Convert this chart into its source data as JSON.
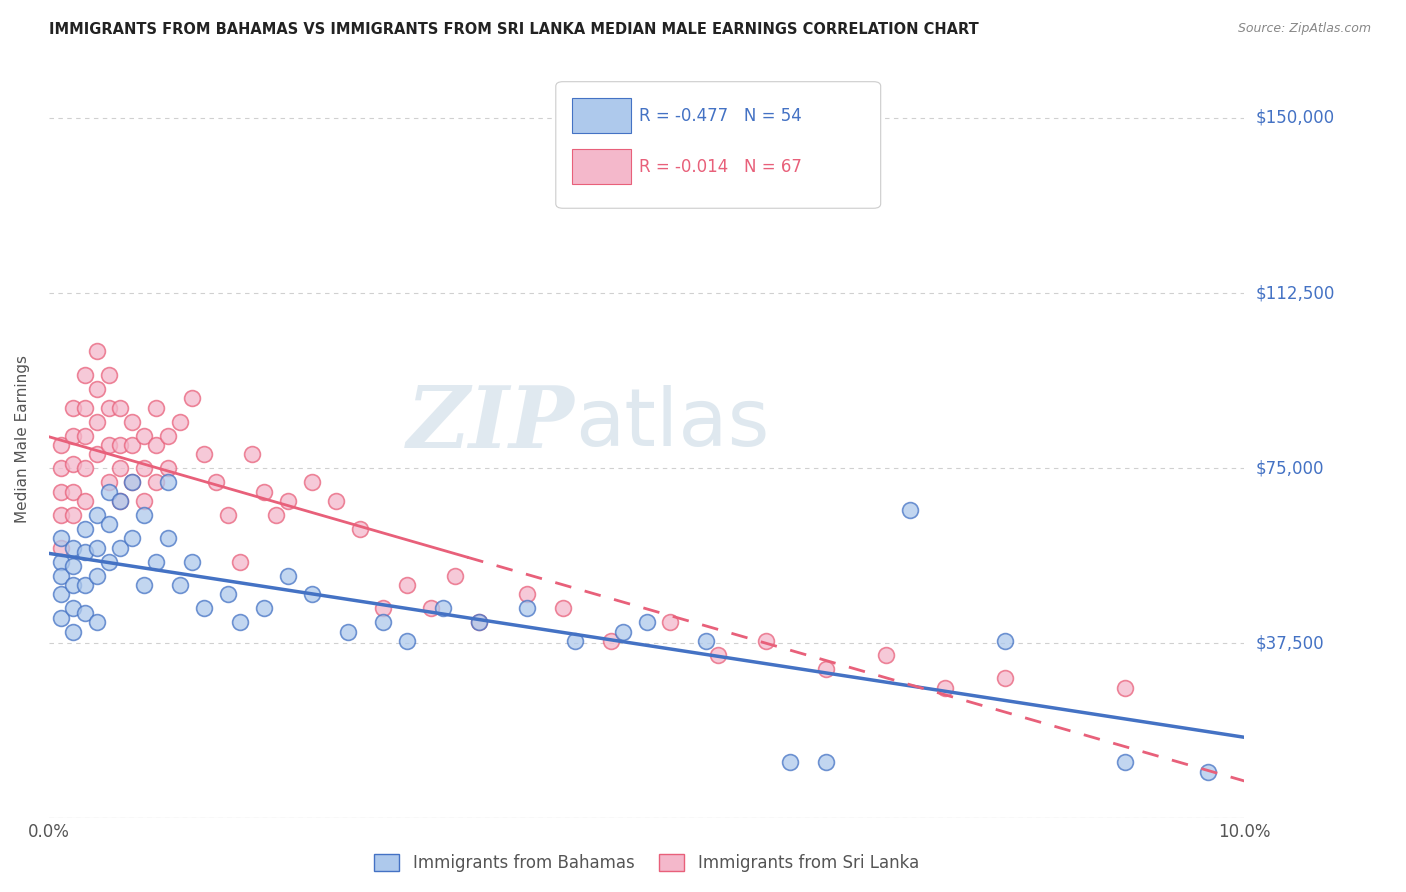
{
  "title": "IMMIGRANTS FROM BAHAMAS VS IMMIGRANTS FROM SRI LANKA MEDIAN MALE EARNINGS CORRELATION CHART",
  "source": "Source: ZipAtlas.com",
  "ylabel": "Median Male Earnings",
  "xlim": [
    0.0,
    0.1
  ],
  "ylim": [
    0,
    162500
  ],
  "yticks": [
    0,
    37500,
    75000,
    112500,
    150000
  ],
  "ytick_labels": [
    "",
    "$37,500",
    "$75,000",
    "$112,500",
    "$150,000"
  ],
  "xticks": [
    0.0,
    0.02,
    0.04,
    0.06,
    0.08,
    0.1
  ],
  "xtick_labels": [
    "0.0%",
    "",
    "",
    "",
    "",
    "10.0%"
  ],
  "bahamas_R": "-0.477",
  "bahamas_N": "54",
  "srilanka_R": "-0.014",
  "srilanka_N": "67",
  "background_color": "#ffffff",
  "grid_color": "#d0d0d0",
  "bahamas_color": "#aec9ec",
  "bahamas_line_color": "#4472c4",
  "srilanka_color": "#f4b8cb",
  "srilanka_line_color": "#e8607a",
  "watermark_zip_color": "#c5d8e8",
  "watermark_atlas_color": "#b8d0e8",
  "bahamas_x": [
    0.001,
    0.001,
    0.001,
    0.001,
    0.001,
    0.002,
    0.002,
    0.002,
    0.002,
    0.002,
    0.003,
    0.003,
    0.003,
    0.003,
    0.004,
    0.004,
    0.004,
    0.004,
    0.005,
    0.005,
    0.005,
    0.006,
    0.006,
    0.007,
    0.007,
    0.008,
    0.008,
    0.009,
    0.01,
    0.01,
    0.011,
    0.012,
    0.013,
    0.015,
    0.016,
    0.018,
    0.02,
    0.022,
    0.025,
    0.028,
    0.03,
    0.033,
    0.036,
    0.04,
    0.044,
    0.048,
    0.05,
    0.055,
    0.062,
    0.065,
    0.072,
    0.08,
    0.09,
    0.097
  ],
  "bahamas_y": [
    60000,
    55000,
    52000,
    48000,
    43000,
    58000,
    54000,
    50000,
    45000,
    40000,
    62000,
    57000,
    50000,
    44000,
    65000,
    58000,
    52000,
    42000,
    70000,
    63000,
    55000,
    68000,
    58000,
    72000,
    60000,
    65000,
    50000,
    55000,
    72000,
    60000,
    50000,
    55000,
    45000,
    48000,
    42000,
    45000,
    52000,
    48000,
    40000,
    42000,
    38000,
    45000,
    42000,
    45000,
    38000,
    40000,
    42000,
    38000,
    12000,
    12000,
    66000,
    38000,
    12000,
    10000
  ],
  "srilanka_x": [
    0.001,
    0.001,
    0.001,
    0.001,
    0.001,
    0.002,
    0.002,
    0.002,
    0.002,
    0.002,
    0.003,
    0.003,
    0.003,
    0.003,
    0.003,
    0.004,
    0.004,
    0.004,
    0.004,
    0.005,
    0.005,
    0.005,
    0.005,
    0.006,
    0.006,
    0.006,
    0.006,
    0.007,
    0.007,
    0.007,
    0.008,
    0.008,
    0.008,
    0.009,
    0.009,
    0.009,
    0.01,
    0.01,
    0.011,
    0.012,
    0.013,
    0.014,
    0.015,
    0.016,
    0.017,
    0.018,
    0.019,
    0.02,
    0.022,
    0.024,
    0.026,
    0.028,
    0.03,
    0.032,
    0.034,
    0.036,
    0.04,
    0.043,
    0.047,
    0.052,
    0.056,
    0.06,
    0.065,
    0.07,
    0.075,
    0.08,
    0.09
  ],
  "srilanka_y": [
    80000,
    75000,
    70000,
    65000,
    58000,
    88000,
    82000,
    76000,
    70000,
    65000,
    95000,
    88000,
    82000,
    75000,
    68000,
    100000,
    92000,
    85000,
    78000,
    95000,
    88000,
    80000,
    72000,
    88000,
    80000,
    75000,
    68000,
    85000,
    80000,
    72000,
    82000,
    75000,
    68000,
    88000,
    80000,
    72000,
    82000,
    75000,
    85000,
    90000,
    78000,
    72000,
    65000,
    55000,
    78000,
    70000,
    65000,
    68000,
    72000,
    68000,
    62000,
    45000,
    50000,
    45000,
    52000,
    42000,
    48000,
    45000,
    38000,
    42000,
    35000,
    38000,
    32000,
    35000,
    28000,
    30000,
    28000
  ]
}
